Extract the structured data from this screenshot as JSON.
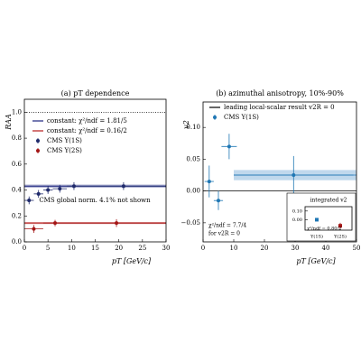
{
  "chart_data": [
    {
      "type": "scatter",
      "title": "(a) pT dependence",
      "xlabel": "pT [GeV/c]",
      "ylabel": "RAA",
      "xlim": [
        0,
        30
      ],
      "xticks": [
        0,
        5,
        10,
        15,
        20,
        25,
        30
      ],
      "ylim": [
        0,
        1.1
      ],
      "yticks": [
        {
          "value": 0,
          "label": "0.0"
        },
        {
          "value": 0.2,
          "label": "0.2"
        },
        {
          "value": 0.4,
          "label": "0.4"
        },
        {
          "value": 0.6,
          "label": "0.6"
        },
        {
          "value": 0.8,
          "label": "0.8"
        },
        {
          "value": 1,
          "label": "1.0"
        }
      ],
      "reference_line": {
        "value": 1,
        "style": "dotted"
      },
      "legend": "upper left",
      "annotations": [
        "CMS global norm. 4.1% not shown"
      ],
      "fits": [
        {
          "name": "constant: χ²/ndf = 1.81/5",
          "color": "#1a237e",
          "value": 0.43,
          "error": 0.012,
          "xrange": [
            0,
            30
          ]
        },
        {
          "name": "constant: χ²/ndf = 0.16/2",
          "color": "#b71c1c",
          "value": 0.145,
          "error": 0.008,
          "xrange": [
            0,
            30
          ]
        }
      ],
      "series": [
        {
          "name": "CMS Υ(1S)",
          "color": "#1f2a6b",
          "x": [
            1,
            3,
            5,
            7.5,
            10.5,
            21
          ],
          "xerr": [
            1,
            1,
            1,
            1.5,
            1.5,
            9
          ],
          "values": [
            0.32,
            0.37,
            0.4,
            0.41,
            0.43,
            0.43
          ],
          "errors": [
            0.03,
            0.03,
            0.03,
            0.03,
            0.03,
            0.03
          ]
        },
        {
          "name": "CMS Υ(2S)",
          "color": "#a31515",
          "x": [
            2,
            6.5,
            19.5
          ],
          "xerr": [
            2,
            2.5,
            10.5
          ],
          "values": [
            0.1,
            0.145,
            0.145
          ],
          "errors": [
            0.03,
            0.025,
            0.03
          ]
        }
      ]
    },
    {
      "type": "scatter",
      "title": "(b) azimuthal anisotropy, 10%-90%",
      "xlabel": "pT [GeV/c]",
      "ylabel": "v2",
      "xlim": [
        0,
        50
      ],
      "xticks": [
        0,
        10,
        20,
        30,
        40,
        50
      ],
      "ylim": [
        -0.08,
        0.14
      ],
      "yticks": [
        {
          "value": -0.05,
          "label": "−0.05"
        },
        {
          "value": 0,
          "label": "0.00"
        },
        {
          "value": 0.05,
          "label": "0.05"
        },
        {
          "value": 0.1,
          "label": "0.10"
        }
      ],
      "reference_line": {
        "name": "leading local-scalar result v2R = 0",
        "value": 0,
        "style": "solid"
      },
      "legend": "upper left",
      "annotations": [
        "χ²/ndf = 7.7/4",
        "for v2R = 0"
      ],
      "fits": [
        {
          "color": "#4a90c8",
          "value": 0.025,
          "error": 0.008,
          "xrange": [
            10,
            50
          ]
        }
      ],
      "series": [
        {
          "name": "CMS Υ(1S)",
          "color": "#1f77b4",
          "x": [
            2,
            5,
            8.5,
            29.5
          ],
          "xerr": [
            1.5,
            1.5,
            2.5,
            19.5
          ],
          "values": [
            0.015,
            -0.015,
            0.07,
            0.025
          ],
          "errors": [
            0.025,
            0.015,
            0.02,
            0.03
          ]
        }
      ]
    },
    {
      "type": "category-errorbar",
      "title": "integrated v2",
      "categories": [
        "Υ(1S)",
        "Υ(2S)"
      ],
      "ylim": [
        -0.12,
        0.15
      ],
      "yticks": [
        {
          "value": 0,
          "label": "0.00"
        },
        {
          "value": 0.1,
          "label": "0.10"
        }
      ],
      "annotations": [
        "χ²/ndf = 0.80/2"
      ],
      "colors": [
        "#1f77b4",
        "#a31515"
      ],
      "values": [
        0.0,
        -0.07
      ],
      "errors": [
        0.01,
        0.035
      ]
    }
  ]
}
